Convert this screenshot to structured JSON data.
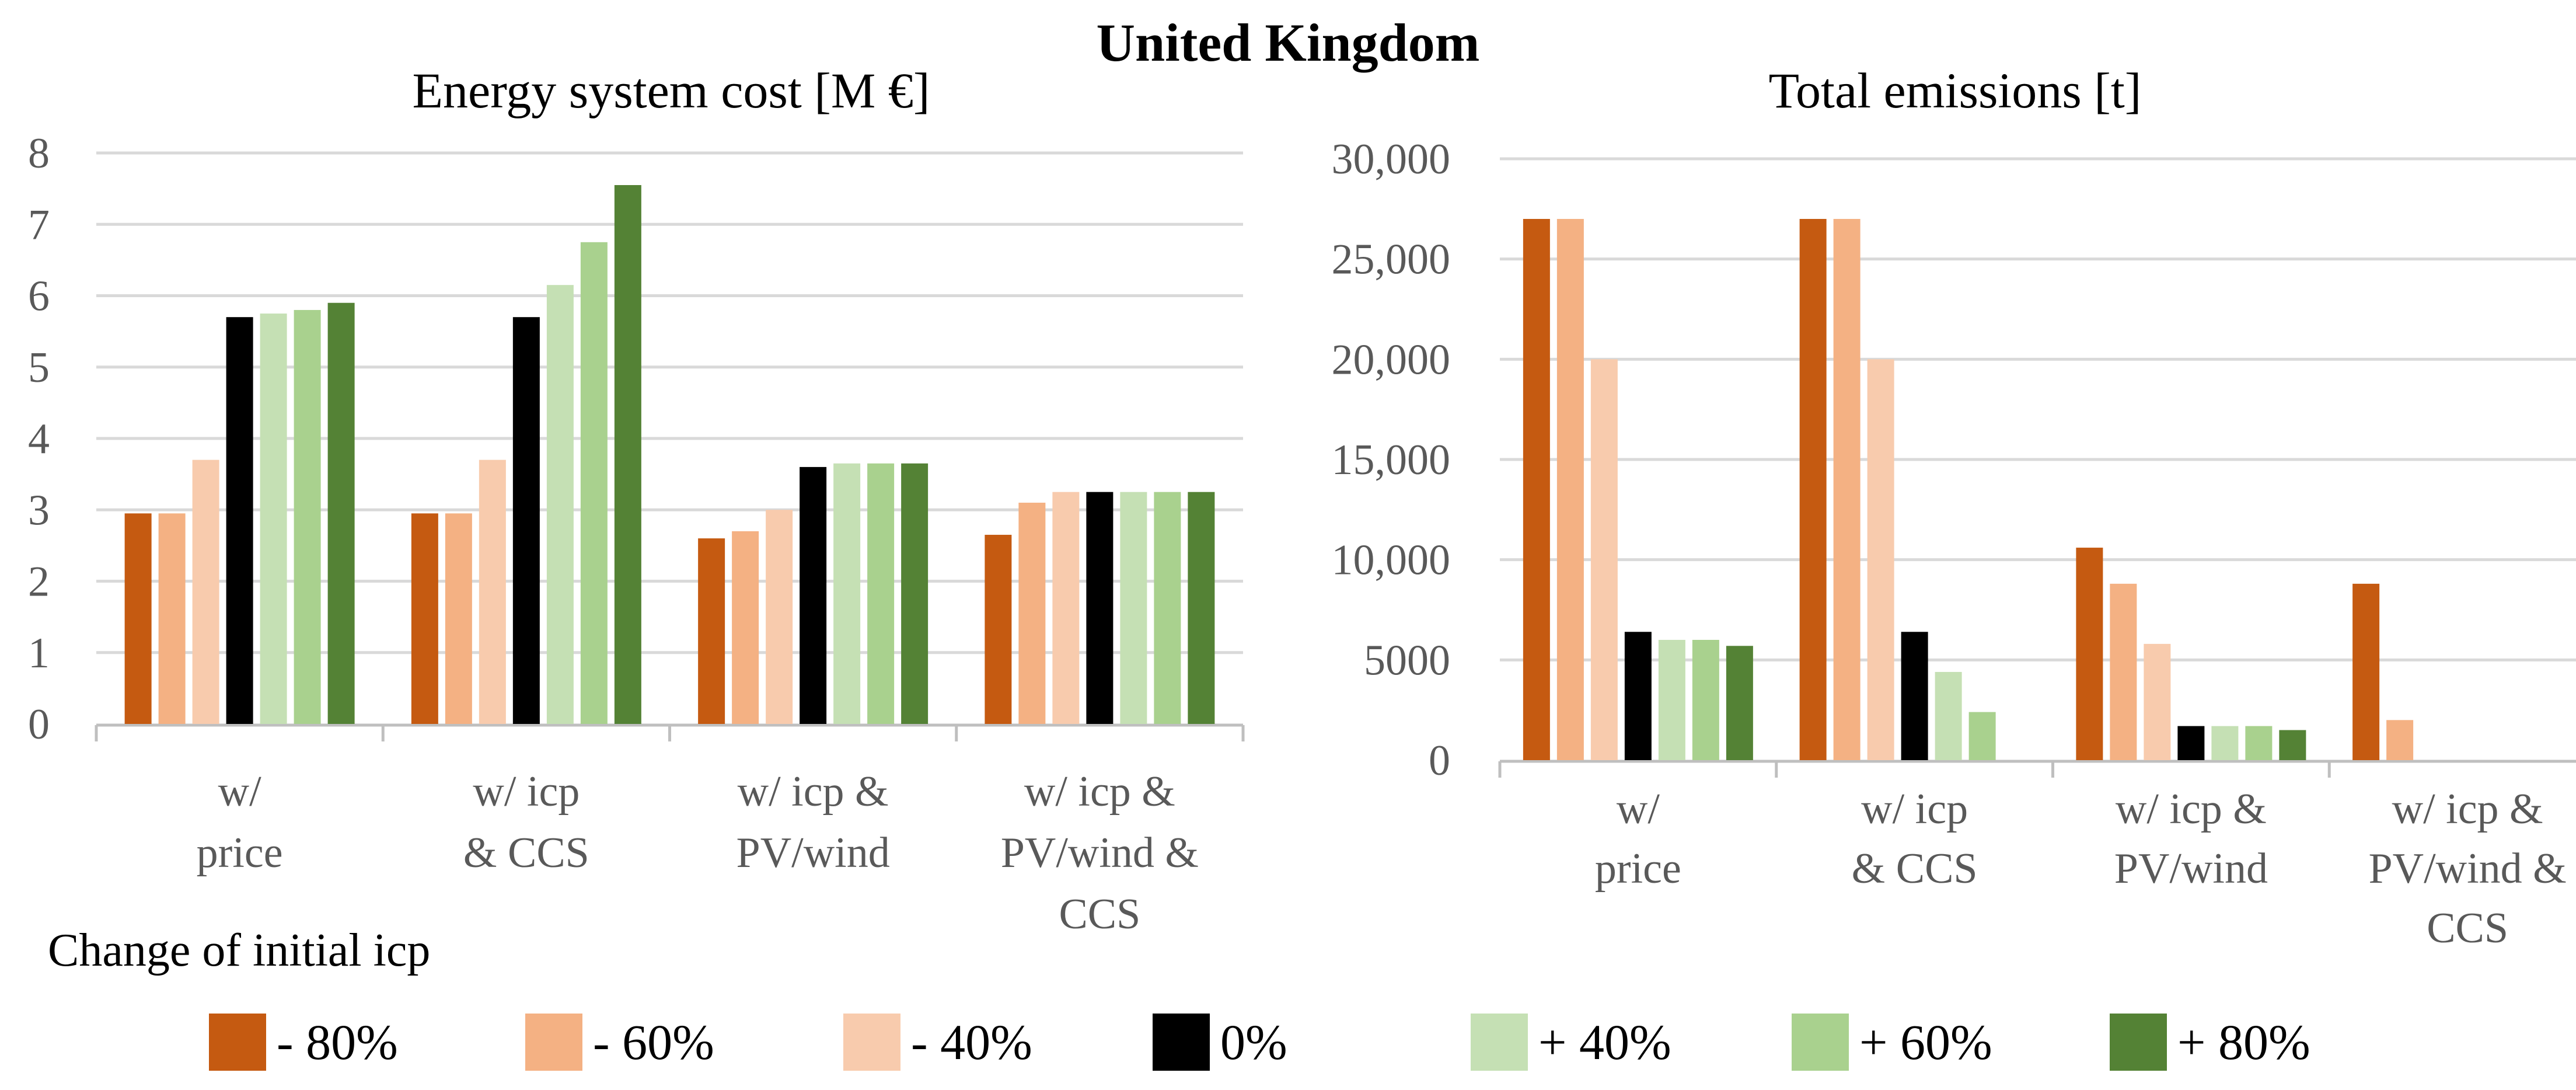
{
  "figure_title": "United Kingdom",
  "legend": {
    "title": "Change of initial icp",
    "items": [
      {
        "label": "- 80%",
        "color": "#C55A11"
      },
      {
        "label": "- 60%",
        "color": "#F4B183"
      },
      {
        "label": "- 40%",
        "color": "#F8CBAD"
      },
      {
        "label": "0%",
        "color": "#000000"
      },
      {
        "label": "+ 40%",
        "color": "#C5E0B4"
      },
      {
        "label": "+ 60%",
        "color": "#A9D18E"
      },
      {
        "label": "+ 80%",
        "color": "#548235"
      }
    ]
  },
  "chart_data": [
    {
      "type": "bar",
      "title": "Energy system cost [M €]",
      "categories": [
        [
          "w/",
          "price"
        ],
        [
          "w/ icp",
          "& CCS"
        ],
        [
          "w/ icp &",
          "PV/wind"
        ],
        [
          "w/ icp &",
          "PV/wind &",
          "CCS"
        ]
      ],
      "ylim": [
        0,
        8
      ],
      "yticks": [
        0,
        1,
        2,
        3,
        4,
        5,
        6,
        7,
        8
      ],
      "ytick_labels": [
        "0",
        "1",
        "2",
        "3",
        "4",
        "5",
        "6",
        "7",
        "8"
      ],
      "grid": true,
      "series": [
        {
          "name": "- 80%",
          "values": [
            2.95,
            2.95,
            2.6,
            2.65
          ]
        },
        {
          "name": "- 60%",
          "values": [
            2.95,
            2.95,
            2.7,
            3.1
          ]
        },
        {
          "name": "- 40%",
          "values": [
            3.7,
            3.7,
            3.0,
            3.25
          ]
        },
        {
          "name": "0%",
          "values": [
            5.7,
            5.7,
            3.6,
            3.25
          ]
        },
        {
          "name": "+ 40%",
          "values": [
            5.75,
            6.15,
            3.65,
            3.25
          ]
        },
        {
          "name": "+ 60%",
          "values": [
            5.8,
            6.75,
            3.65,
            3.25
          ]
        },
        {
          "name": "+ 80%",
          "values": [
            5.9,
            7.55,
            3.65,
            3.25
          ]
        }
      ]
    },
    {
      "type": "bar",
      "title": "Total emissions [t]",
      "categories": [
        [
          "w/",
          "price"
        ],
        [
          "w/ icp",
          "& CCS"
        ],
        [
          "w/ icp &",
          "PV/wind"
        ],
        [
          "w/ icp &",
          "PV/wind &",
          "CCS"
        ]
      ],
      "ylim": [
        0,
        30000
      ],
      "yticks": [
        0,
        5000,
        10000,
        15000,
        20000,
        25000,
        30000
      ],
      "ytick_labels": [
        "0",
        "5000",
        "10,000",
        "15,000",
        "20,000",
        "25,000",
        "30,000"
      ],
      "grid": true,
      "series": [
        {
          "name": "- 80%",
          "values": [
            27000,
            27000,
            10600,
            8800
          ]
        },
        {
          "name": "- 60%",
          "values": [
            27000,
            27000,
            8800,
            2000
          ]
        },
        {
          "name": "- 40%",
          "values": [
            20000,
            20000,
            5800,
            0
          ]
        },
        {
          "name": "0%",
          "values": [
            6400,
            6400,
            1700,
            0
          ]
        },
        {
          "name": "+ 40%",
          "values": [
            6000,
            4400,
            1700,
            0
          ]
        },
        {
          "name": "+ 60%",
          "values": [
            6000,
            2400,
            1700,
            0
          ]
        },
        {
          "name": "+ 80%",
          "values": [
            5700,
            0,
            1500,
            0
          ]
        }
      ]
    }
  ]
}
